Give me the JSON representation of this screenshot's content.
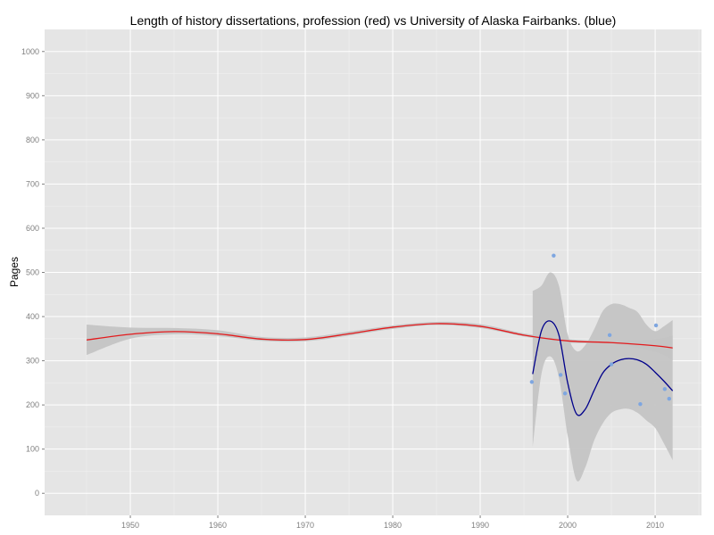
{
  "chart_data": {
    "type": "line",
    "title": "Length of history dissertations, profession (red) vs University of Alaska Fairbanks. (blue)",
    "xlabel": "",
    "ylabel": "Pages",
    "xlim": [
      1940.2,
      2015.3
    ],
    "ylim": [
      -50,
      1050
    ],
    "x_ticks": [
      1950,
      1960,
      1970,
      1980,
      1990,
      2000,
      2010
    ],
    "y_ticks": [
      0,
      100,
      200,
      300,
      400,
      500,
      600,
      700,
      800,
      900,
      1000
    ],
    "grid": true,
    "legend": "none",
    "colors": {
      "panel": "#e5e5e5",
      "grid_major": "#ffffff",
      "grid_minor": "#f2f2f2",
      "band": "#c4c4c4",
      "profession": "#e31a1c",
      "uaf_line": "#00008b",
      "uaf_points": "#7ea6e0"
    },
    "series": [
      {
        "kind": "smooth",
        "color": "#e31a1c",
        "x": [
          1945,
          1950,
          1955,
          1960,
          1965,
          1970,
          1975,
          1980,
          1985,
          1990,
          1995,
          2000,
          2005,
          2010,
          2012
        ],
        "y": [
          347,
          360,
          366,
          361,
          349,
          348,
          361,
          376,
          384,
          378,
          358,
          345,
          341,
          334,
          329
        ],
        "ci_upper": [
          382,
          375,
          374,
          369,
          354,
          353,
          366,
          380,
          388,
          383,
          362,
          349,
          344,
          349,
          357
        ],
        "ci_lower": [
          313,
          350,
          360,
          356,
          345,
          344,
          357,
          372,
          381,
          374,
          355,
          341,
          338,
          320,
          301
        ]
      },
      {
        "kind": "smooth",
        "color": "#00008b",
        "x": [
          1996,
          1997,
          1998,
          1999,
          2000,
          2001,
          2002,
          2003,
          2004,
          2005,
          2006,
          2007,
          2008,
          2009,
          2010,
          2011,
          2012
        ],
        "y": [
          270,
          368,
          390,
          358,
          250,
          180,
          190,
          232,
          272,
          292,
          302,
          305,
          302,
          292,
          274,
          254,
          232
        ],
        "ci_upper": [
          458,
          470,
          500,
          470,
          360,
          322,
          335,
          370,
          412,
          428,
          428,
          420,
          410,
          382,
          367,
          378,
          392
        ],
        "ci_lower": [
          104,
          270,
          310,
          262,
          130,
          30,
          58,
          118,
          158,
          182,
          190,
          191,
          182,
          165,
          148,
          113,
          75
        ]
      }
    ],
    "points": {
      "color": "#7ea6e0",
      "x": [
        1995.9,
        1998.4,
        1999.2,
        1999.7,
        2004.8,
        2005.0,
        2008.3,
        2010.1,
        2011.1,
        2011.6
      ],
      "y": [
        252,
        538,
        268,
        226,
        358,
        292,
        202,
        380,
        236,
        214
      ]
    }
  }
}
